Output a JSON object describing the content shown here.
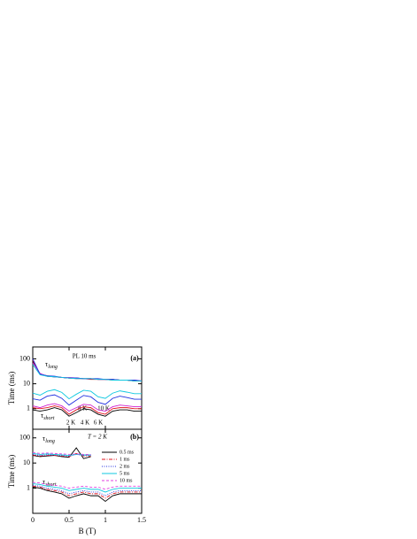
{
  "chart_data": [
    {
      "type": "line",
      "log_y": true,
      "ylabel": "Time (ms)",
      "xlim": [
        0,
        1.5
      ],
      "xticks": [
        0,
        0.5,
        1,
        1.5
      ],
      "show_xtick_labels": false,
      "ylim": [
        0.15,
        300
      ],
      "yticks": [
        1,
        10,
        100
      ],
      "annotations": [
        "PL 10 ms",
        "(a)",
        "τ",
        "long",
        "τ",
        "short"
      ],
      "x": [
        0,
        0.1,
        0.2,
        0.3,
        0.4,
        0.5,
        0.6,
        0.7,
        0.8,
        0.9,
        1.0,
        1.1,
        1.2,
        1.3,
        1.4,
        1.5
      ],
      "series": [
        {
          "name": "2 K",
          "color": "#000000",
          "values": [
            0.9,
            0.8,
            0.9,
            1.1,
            0.9,
            0.5,
            0.7,
            1.0,
            0.9,
            0.6,
            0.5,
            0.8,
            0.9,
            0.9,
            0.8,
            0.8
          ],
          "long_values": [
            80,
            25,
            20,
            19,
            18,
            17,
            17,
            16,
            16,
            15,
            15,
            15,
            14,
            14,
            13,
            13
          ]
        },
        {
          "name": "4 K",
          "color": "#e0141e",
          "values": [
            1.1,
            1.0,
            1.1,
            1.3,
            1.1,
            0.6,
            0.9,
            1.2,
            1.1,
            0.7,
            0.6,
            1.0,
            1.1,
            1.1,
            1.0,
            1.0
          ],
          "long_values": [
            90,
            24,
            21,
            19,
            18,
            17,
            16,
            16,
            15,
            15,
            15,
            14,
            14,
            14,
            13,
            13
          ]
        },
        {
          "name": "6 K",
          "color": "#d020d0",
          "values": [
            1.3,
            1.1,
            1.4,
            1.6,
            1.3,
            0.8,
            1.1,
            1.5,
            1.4,
            0.9,
            0.8,
            1.2,
            1.4,
            1.3,
            1.2,
            1.2
          ],
          "long_values": [
            70,
            26,
            20,
            19,
            18,
            18,
            17,
            16,
            16,
            15,
            15,
            15,
            14,
            14,
            14,
            13
          ]
        },
        {
          "name": "8 K",
          "color": "#2030e0",
          "values": [
            2.5,
            2.2,
            3.2,
            3.6,
            2.6,
            1.4,
            2.2,
            3.4,
            3.0,
            1.8,
            1.5,
            2.6,
            3.2,
            2.8,
            2.4,
            2.4
          ],
          "long_values": [
            100,
            24,
            21,
            20,
            18,
            17,
            17,
            16,
            16,
            16,
            15,
            15,
            14,
            14,
            14,
            13
          ]
        },
        {
          "name": "10 K",
          "color": "#10c8e0",
          "values": [
            4.2,
            3.5,
            5,
            5.8,
            4.5,
            2.5,
            3.8,
            5.5,
            5,
            3,
            2.6,
            4.2,
            5.2,
            4.6,
            4,
            4
          ],
          "long_values": [
            60,
            23,
            20,
            19,
            18,
            17,
            16,
            16,
            16,
            15,
            15,
            14,
            14,
            14,
            13,
            13
          ]
        }
      ]
    },
    {
      "type": "line",
      "log_y": true,
      "ylabel": "Time (ms)",
      "xlabel": "B (T)",
      "xlim": [
        0,
        1.5
      ],
      "xticks": [
        0,
        0.5,
        1,
        1.5
      ],
      "show_xtick_labels": true,
      "ylim": [
        0.1,
        220
      ],
      "yticks": [
        1,
        10,
        100
      ],
      "annotations": [
        "T = 2 K",
        "(b)",
        "τ",
        "long",
        "τ",
        "short"
      ],
      "x": [
        0,
        0.1,
        0.2,
        0.3,
        0.4,
        0.5,
        0.6,
        0.7,
        0.8,
        0.9,
        1.0,
        1.1,
        1.2,
        1.3,
        1.4,
        1.5
      ],
      "series": [
        {
          "name": "0.5 ms",
          "color": "#000000",
          "style": "solid",
          "values": [
            1.1,
            1.0,
            0.8,
            0.7,
            0.6,
            0.4,
            0.5,
            0.6,
            0.5,
            0.5,
            0.3,
            0.5,
            0.6,
            0.6,
            0.6,
            0.6
          ],
          "long_values": [
            20,
            18,
            19,
            20,
            18,
            17,
            40,
            15,
            18,
            null,
            null,
            null,
            null,
            null,
            null,
            null
          ]
        },
        {
          "name": "1 ms",
          "color": "#e0141e",
          "style": "dash-dot",
          "values": [
            1.2,
            1.1,
            0.9,
            0.8,
            0.7,
            0.5,
            0.6,
            0.7,
            0.6,
            0.6,
            0.4,
            0.6,
            0.7,
            0.7,
            0.7,
            0.7
          ],
          "long_values": [
            21,
            19,
            20,
            20,
            19,
            18,
            24,
            19,
            19,
            null,
            null,
            null,
            null,
            null,
            null,
            null
          ]
        },
        {
          "name": "2 ms",
          "color": "#2030e0",
          "style": "dot",
          "values": [
            1.3,
            1.2,
            1.0,
            0.9,
            0.8,
            0.6,
            0.7,
            0.8,
            0.7,
            0.7,
            0.5,
            0.7,
            0.8,
            0.8,
            0.8,
            0.8
          ],
          "long_values": [
            22,
            20,
            21,
            21,
            20,
            19,
            22,
            20,
            20,
            null,
            null,
            null,
            null,
            null,
            null,
            null
          ]
        },
        {
          "name": "5 ms",
          "color": "#10c8e0",
          "style": "solid",
          "values": [
            1.5,
            1.4,
            1.2,
            1.1,
            1.0,
            0.8,
            0.9,
            1.0,
            0.9,
            0.9,
            0.7,
            0.9,
            1.0,
            1.0,
            1.0,
            1.0
          ],
          "long_values": [
            24,
            22,
            23,
            22,
            21,
            20,
            22,
            21,
            21,
            null,
            null,
            null,
            null,
            null,
            null,
            null
          ]
        },
        {
          "name": "10 ms",
          "color": "#e040e0",
          "style": "dash",
          "values": [
            1.7,
            1.6,
            1.4,
            1.3,
            1.2,
            1.0,
            1.1,
            1.2,
            1.1,
            1.1,
            0.9,
            1.1,
            1.2,
            1.2,
            1.2,
            1.2
          ],
          "long_values": [
            26,
            24,
            25,
            24,
            23,
            22,
            23,
            22,
            22,
            null,
            null,
            null,
            null,
            null,
            null,
            null
          ]
        }
      ]
    }
  ]
}
